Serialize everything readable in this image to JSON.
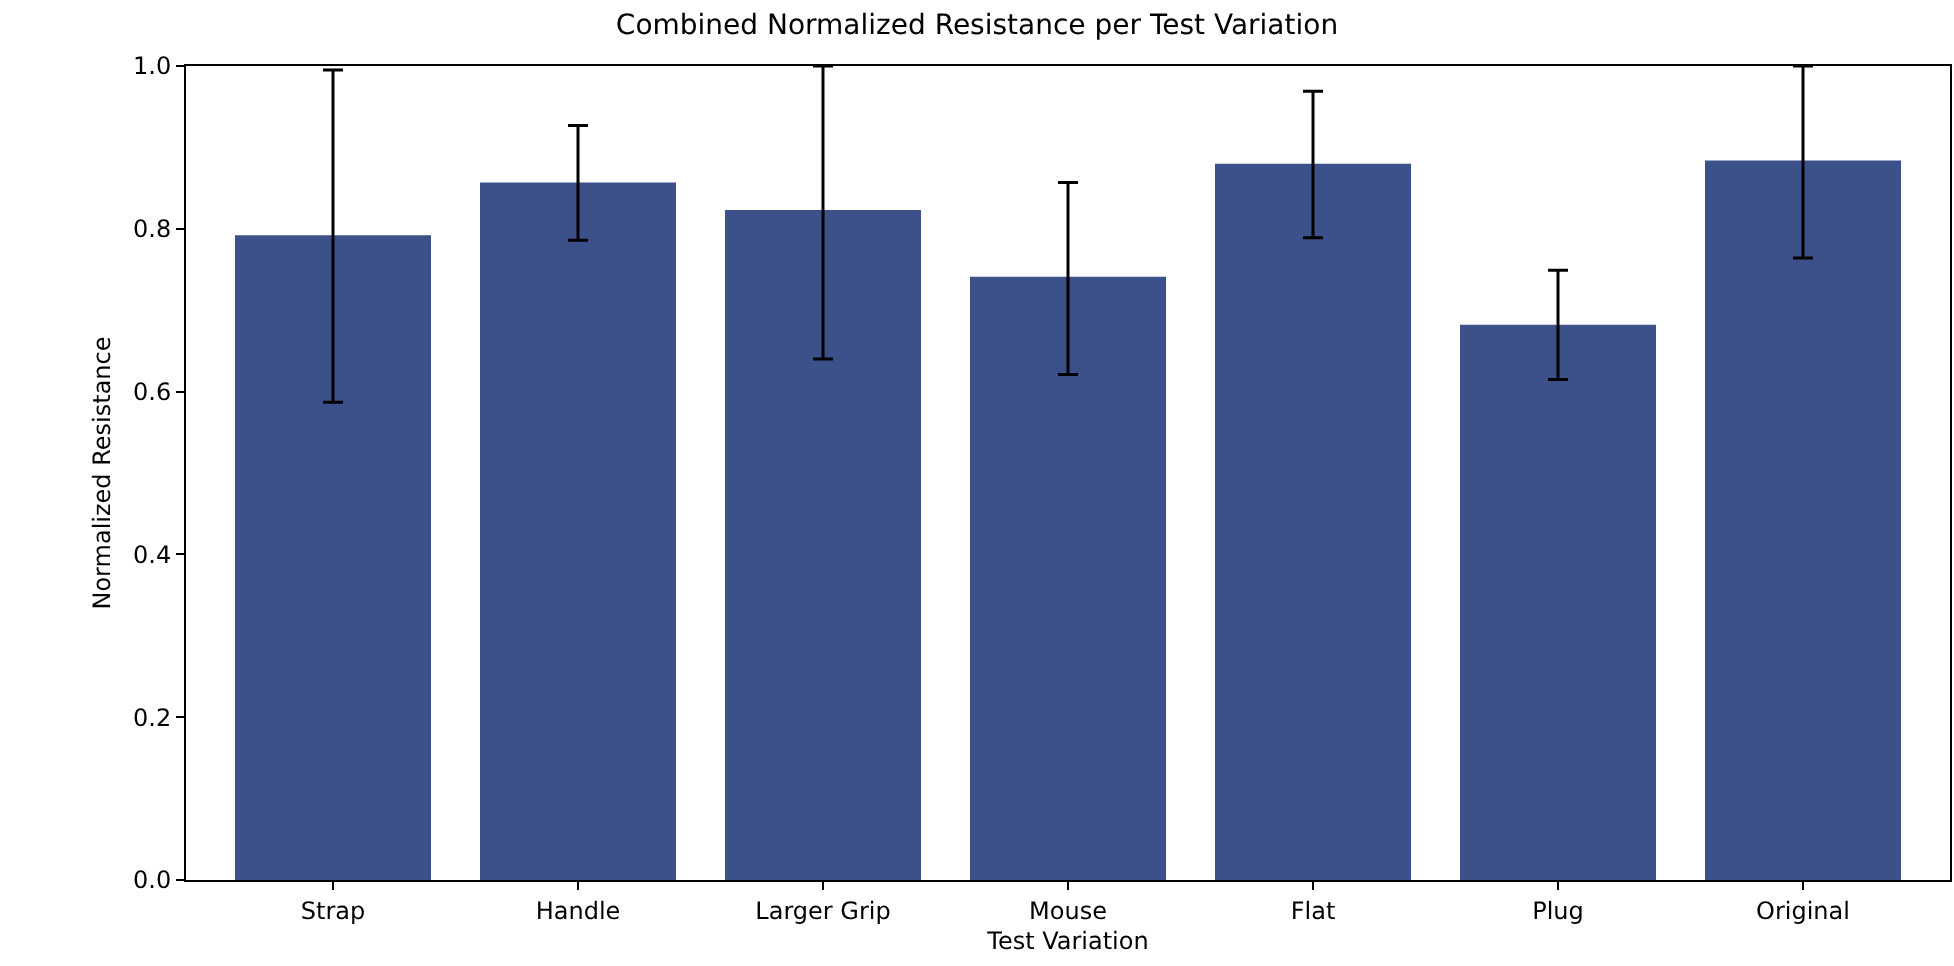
{
  "chart_data": {
    "type": "bar",
    "title": "Combined Normalized Resistance per Test Variation",
    "xlabel": "Test Variation",
    "ylabel": "Normalized Resistance",
    "categories": [
      "Strap",
      "Handle",
      "Larger Grip",
      "Mouse",
      "Flat",
      "Plug",
      "Original"
    ],
    "values": [
      0.792,
      0.857,
      0.823,
      0.741,
      0.88,
      0.682,
      0.884
    ],
    "errors": [
      [
        0.587,
        0.995
      ],
      [
        0.786,
        0.927
      ],
      [
        0.64,
        1.0
      ],
      [
        0.621,
        0.857
      ],
      [
        0.789,
        0.969
      ],
      [
        0.615,
        0.749
      ],
      [
        0.764,
        1.0
      ]
    ],
    "color": "#3c5189",
    "ylim": [
      0,
      1.0
    ],
    "yticks": [
      {
        "value": 0,
        "label": "0.0"
      },
      {
        "value": 0.2,
        "label": "0.2"
      },
      {
        "value": 0.4,
        "label": "0.4"
      },
      {
        "value": 0.6,
        "label": "0.6"
      },
      {
        "value": 0.8,
        "label": "0.8"
      },
      {
        "value": 1.0,
        "label": "1.0"
      }
    ],
    "grid": false
  }
}
